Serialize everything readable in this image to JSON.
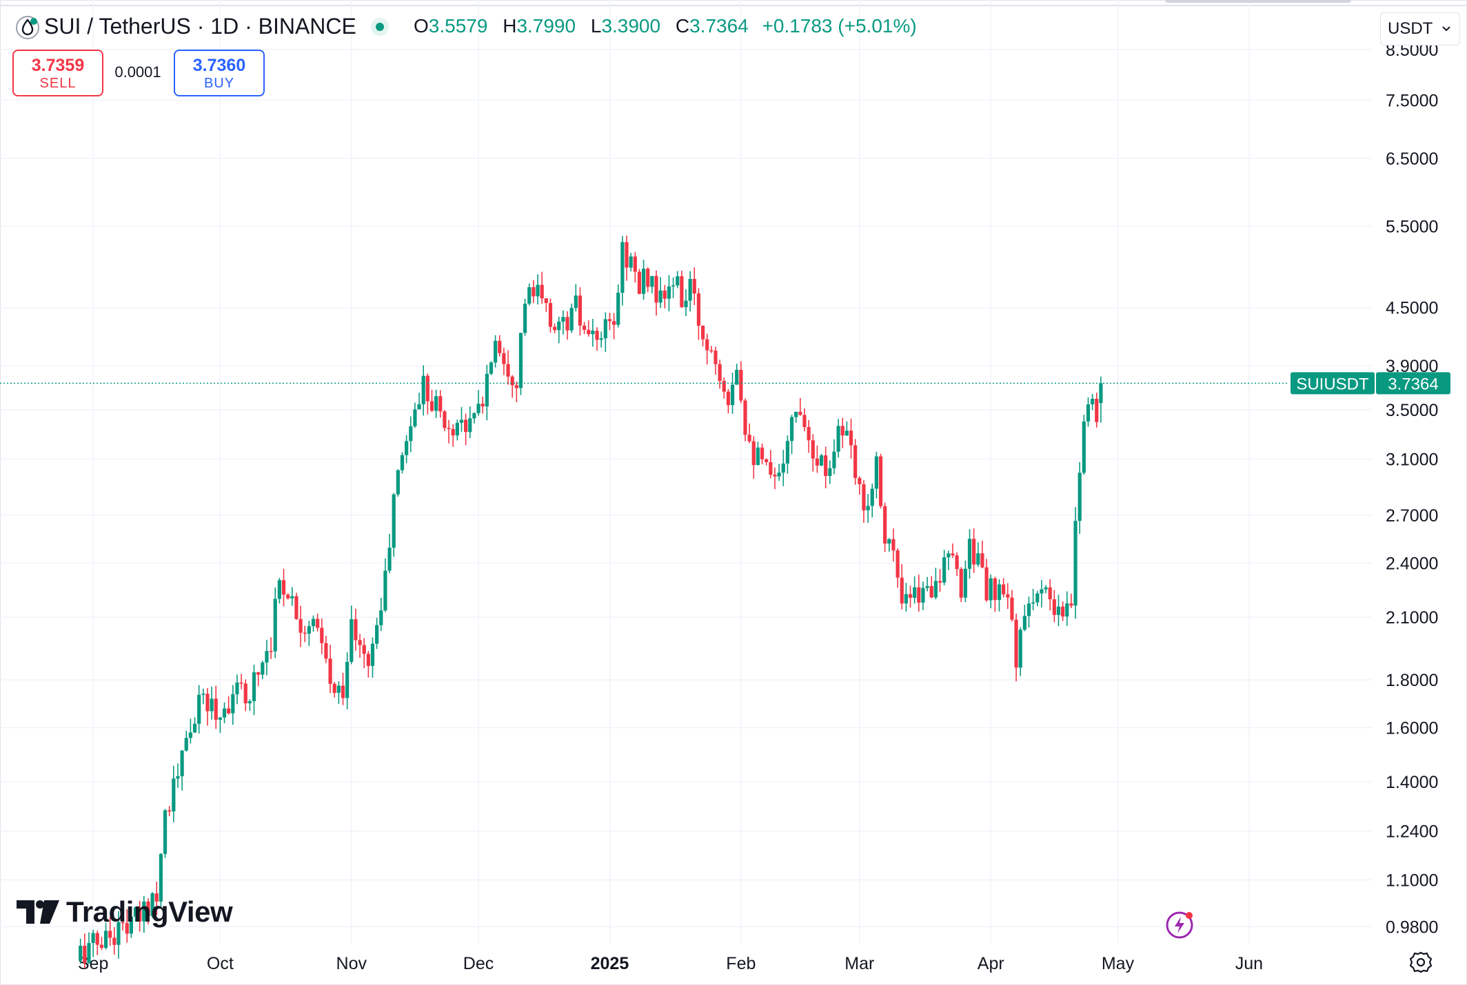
{
  "header": {
    "title": "SUI / TetherUS · 1D · BINANCE",
    "ohlc": {
      "o_label": "O",
      "o": "3.5579",
      "h_label": "H",
      "h": "3.7990",
      "l_label": "L",
      "l": "3.3900",
      "c_label": "C",
      "c": "3.7364",
      "change": "+0.1783 (+5.01%)"
    }
  },
  "trade": {
    "sell_price": "3.7359",
    "sell_label": "SELL",
    "spread": "0.0001",
    "buy_price": "3.7360",
    "buy_label": "BUY"
  },
  "currency_selector": {
    "value": "USDT"
  },
  "branding": {
    "logo_text": "TradingView"
  },
  "colors": {
    "up": "#089981",
    "down": "#f23645",
    "grid": "#f0f3fa",
    "text": "#131722",
    "buy": "#2962ff"
  },
  "icons": [
    "sui-logo-icon",
    "live-status-icon",
    "chevron-down-icon",
    "tradingview-logo-icon",
    "lightning-icon",
    "settings-gear-icon"
  ],
  "chart_data": {
    "type": "candlestick",
    "title": "SUI / TetherUS · 1D · BINANCE",
    "price_scale": "log",
    "ylim": [
      0.94,
      9.6
    ],
    "y_ticks": [
      8.5,
      7.5,
      6.5,
      5.5,
      4.5,
      3.9,
      3.5,
      3.1,
      2.7,
      2.4,
      2.1,
      1.8,
      1.6,
      1.4,
      1.24,
      1.1,
      0.98
    ],
    "y_tick_labels": [
      "8.5000",
      "7.5000",
      "6.5000",
      "5.5000",
      "4.5000",
      "3.9000",
      "3.5000",
      "3.1000",
      "2.7000",
      "2.4000",
      "2.1000",
      "1.8000",
      "1.6000",
      "1.4000",
      "1.2400",
      "1.1000",
      "0.9800"
    ],
    "x_ticks": [
      {
        "date": "2024-09-01",
        "label": "Sep"
      },
      {
        "date": "2024-10-01",
        "label": "Oct"
      },
      {
        "date": "2024-11-01",
        "label": "Nov"
      },
      {
        "date": "2024-12-01",
        "label": "Dec"
      },
      {
        "date": "2025-01-01",
        "label": "2025"
      },
      {
        "date": "2025-02-01",
        "label": "Feb"
      },
      {
        "date": "2025-03-01",
        "label": "Mar"
      },
      {
        "date": "2025-04-01",
        "label": "Apr"
      },
      {
        "date": "2025-05-01",
        "label": "May"
      },
      {
        "date": "2025-06-01",
        "label": "Jun"
      }
    ],
    "x_range": [
      "2024-08-10",
      "2025-06-30"
    ],
    "grid": true,
    "last_price": {
      "symbol": "SUIUSDT",
      "value": "3.7364"
    },
    "anchor_points": [
      [
        "2024-08-29",
        0.92
      ],
      [
        "2024-09-08",
        0.98
      ],
      [
        "2024-09-12",
        1.0
      ],
      [
        "2024-09-16",
        1.08
      ],
      [
        "2024-09-18",
        1.3
      ],
      [
        "2024-09-21",
        1.42
      ],
      [
        "2024-09-24",
        1.6
      ],
      [
        "2024-09-27",
        1.72
      ],
      [
        "2024-10-01",
        1.65
      ],
      [
        "2024-10-04",
        1.75
      ],
      [
        "2024-10-07",
        1.72
      ],
      [
        "2024-10-10",
        1.85
      ],
      [
        "2024-10-13",
        2.0
      ],
      [
        "2024-10-15",
        2.3
      ],
      [
        "2024-10-17",
        2.25
      ],
      [
        "2024-10-20",
        2.08
      ],
      [
        "2024-10-23",
        2.05
      ],
      [
        "2024-10-25",
        1.95
      ],
      [
        "2024-10-28",
        1.72
      ],
      [
        "2024-10-30",
        1.78
      ],
      [
        "2024-11-01",
        2.05
      ],
      [
        "2024-11-04",
        1.88
      ],
      [
        "2024-11-06",
        1.95
      ],
      [
        "2024-11-09",
        2.3
      ],
      [
        "2024-11-11",
        2.8
      ],
      [
        "2024-11-13",
        3.15
      ],
      [
        "2024-11-16",
        3.5
      ],
      [
        "2024-11-18",
        3.75
      ],
      [
        "2024-11-21",
        3.55
      ],
      [
        "2024-11-24",
        3.3
      ],
      [
        "2024-11-27",
        3.45
      ],
      [
        "2024-11-29",
        3.35
      ],
      [
        "2024-12-02",
        3.6
      ],
      [
        "2024-12-05",
        4.2
      ],
      [
        "2024-12-08",
        3.9
      ],
      [
        "2024-12-10",
        3.8
      ],
      [
        "2024-12-12",
        4.6
      ],
      [
        "2024-12-15",
        4.65
      ],
      [
        "2024-12-18",
        4.35
      ],
      [
        "2024-12-21",
        4.3
      ],
      [
        "2024-12-24",
        4.5
      ],
      [
        "2024-12-27",
        4.1
      ],
      [
        "2024-12-30",
        4.2
      ],
      [
        "2025-01-02",
        4.3
      ],
      [
        "2025-01-04",
        5.2
      ],
      [
        "2025-01-06",
        5.05
      ],
      [
        "2025-01-08",
        4.7
      ],
      [
        "2025-01-10",
        4.9
      ],
      [
        "2025-01-13",
        4.55
      ],
      [
        "2025-01-16",
        4.8
      ],
      [
        "2025-01-18",
        4.6
      ],
      [
        "2025-01-20",
        4.7
      ],
      [
        "2025-01-23",
        4.2
      ],
      [
        "2025-01-26",
        4.0
      ],
      [
        "2025-01-29",
        3.65
      ],
      [
        "2025-01-31",
        3.95
      ],
      [
        "2025-02-02",
        3.4
      ],
      [
        "2025-02-04",
        3.15
      ],
      [
        "2025-02-07",
        3.0
      ],
      [
        "2025-02-09",
        2.9
      ],
      [
        "2025-02-12",
        3.3
      ],
      [
        "2025-02-15",
        3.55
      ],
      [
        "2025-02-18",
        3.2
      ],
      [
        "2025-02-21",
        3.0
      ],
      [
        "2025-02-24",
        3.35
      ],
      [
        "2025-02-26",
        3.25
      ],
      [
        "2025-03-01",
        2.85
      ],
      [
        "2025-03-03",
        2.8
      ],
      [
        "2025-03-05",
        3.1
      ],
      [
        "2025-03-07",
        2.6
      ],
      [
        "2025-03-09",
        2.45
      ],
      [
        "2025-03-11",
        2.15
      ],
      [
        "2025-03-14",
        2.2
      ],
      [
        "2025-03-17",
        2.25
      ],
      [
        "2025-03-20",
        2.35
      ],
      [
        "2025-03-23",
        2.4
      ],
      [
        "2025-03-25",
        2.25
      ],
      [
        "2025-03-27",
        2.55
      ],
      [
        "2025-03-29",
        2.4
      ],
      [
        "2025-03-31",
        2.25
      ],
      [
        "2025-04-03",
        2.2
      ],
      [
        "2025-04-05",
        2.2
      ],
      [
        "2025-04-07",
        1.92
      ],
      [
        "2025-04-09",
        2.05
      ],
      [
        "2025-04-11",
        2.25
      ],
      [
        "2025-04-14",
        2.2
      ],
      [
        "2025-04-16",
        2.1
      ],
      [
        "2025-04-18",
        2.1
      ],
      [
        "2025-04-20",
        2.15
      ],
      [
        "2025-04-21",
        2.6
      ],
      [
        "2025-04-22",
        3.1
      ],
      [
        "2025-04-23",
        3.45
      ],
      [
        "2025-04-25",
        3.6
      ],
      [
        "2025-04-26",
        3.5
      ],
      [
        "2025-04-27",
        3.74
      ]
    ],
    "last_bar": {
      "date": "2025-04-27",
      "open": 3.5579,
      "high": 3.799,
      "low": 3.39,
      "close": 3.7364
    }
  }
}
